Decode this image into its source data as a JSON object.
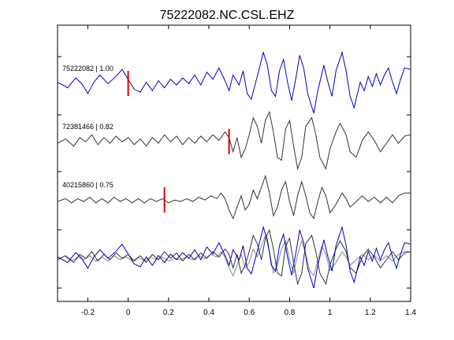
{
  "chart_data": {
    "type": "line",
    "title": "75222082.NC.CSL.EHZ",
    "xlim": [
      -0.35,
      1.4
    ],
    "x_ticks": [
      -0.2,
      0,
      0.2,
      0.4,
      0.6,
      0.8,
      1,
      1.2,
      1.4
    ],
    "x_tick_labels": [
      "-0.2",
      "0",
      "0.2",
      "0.4",
      "0.6",
      "0.8",
      "1",
      "1.2",
      "1.4"
    ],
    "grid": false,
    "colors": {
      "primary": "#0000cc",
      "secondary": "#333333",
      "overlay_gray": "#888888",
      "pick": "#dd0000"
    },
    "traces": [
      {
        "label": "75222082 | 1.00",
        "color": "#0000cc",
        "pick_time": 0.0,
        "points": [
          [
            -0.35,
            0.1
          ],
          [
            -0.3,
            -0.1
          ],
          [
            -0.26,
            0.25
          ],
          [
            -0.23,
            0.05
          ],
          [
            -0.2,
            -0.3
          ],
          [
            -0.17,
            0.1
          ],
          [
            -0.14,
            0.35
          ],
          [
            -0.1,
            0.05
          ],
          [
            -0.06,
            0.3
          ],
          [
            -0.03,
            0.55
          ],
          [
            0.0,
            0.2
          ],
          [
            0.03,
            -0.15
          ],
          [
            0.06,
            -0.25
          ],
          [
            0.09,
            0.1
          ],
          [
            0.12,
            -0.2
          ],
          [
            0.15,
            0.15
          ],
          [
            0.18,
            -0.1
          ],
          [
            0.21,
            0.2
          ],
          [
            0.24,
            0.0
          ],
          [
            0.27,
            0.25
          ],
          [
            0.3,
            0.05
          ],
          [
            0.33,
            0.35
          ],
          [
            0.36,
            0.0
          ],
          [
            0.39,
            0.45
          ],
          [
            0.42,
            0.2
          ],
          [
            0.45,
            0.6
          ],
          [
            0.48,
            0.15
          ],
          [
            0.5,
            -0.2
          ],
          [
            0.52,
            0.35
          ],
          [
            0.55,
            0.0
          ],
          [
            0.57,
            0.5
          ],
          [
            0.59,
            -0.3
          ],
          [
            0.61,
            -0.5
          ],
          [
            0.64,
            0.3
          ],
          [
            0.67,
            1.15
          ],
          [
            0.69,
            0.7
          ],
          [
            0.71,
            -0.2
          ],
          [
            0.73,
            -0.4
          ],
          [
            0.75,
            0.5
          ],
          [
            0.77,
            0.9
          ],
          [
            0.79,
            0.1
          ],
          [
            0.81,
            -0.55
          ],
          [
            0.83,
            0.2
          ],
          [
            0.85,
            1.05
          ],
          [
            0.87,
            0.6
          ],
          [
            0.89,
            -0.3
          ],
          [
            0.92,
            -1.0
          ],
          [
            0.94,
            -0.2
          ],
          [
            0.97,
            0.7
          ],
          [
            0.99,
            0.1
          ],
          [
            1.01,
            -0.4
          ],
          [
            1.03,
            0.5
          ],
          [
            1.06,
            1.15
          ],
          [
            1.08,
            0.5
          ],
          [
            1.1,
            -0.4
          ],
          [
            1.12,
            -0.8
          ],
          [
            1.15,
            0.1
          ],
          [
            1.17,
            -0.2
          ],
          [
            1.19,
            0.3
          ],
          [
            1.21,
            -0.05
          ],
          [
            1.23,
            0.4
          ],
          [
            1.25,
            0.0
          ],
          [
            1.27,
            0.35
          ],
          [
            1.29,
            0.6
          ],
          [
            1.31,
            0.1
          ],
          [
            1.33,
            -0.3
          ],
          [
            1.35,
            0.2
          ],
          [
            1.37,
            0.6
          ],
          [
            1.4,
            0.55
          ]
        ]
      },
      {
        "label": "72381466 | 0.82",
        "color": "#333333",
        "pick_time": 0.5,
        "points": [
          [
            -0.35,
            0.0
          ],
          [
            -0.31,
            0.15
          ],
          [
            -0.27,
            -0.1
          ],
          [
            -0.24,
            0.2
          ],
          [
            -0.21,
            0.05
          ],
          [
            -0.18,
            0.3
          ],
          [
            -0.15,
            -0.05
          ],
          [
            -0.12,
            0.2
          ],
          [
            -0.09,
            0.0
          ],
          [
            -0.06,
            0.25
          ],
          [
            -0.03,
            0.05
          ],
          [
            0.0,
            0.2
          ],
          [
            0.03,
            -0.05
          ],
          [
            0.06,
            0.15
          ],
          [
            0.09,
            -0.1
          ],
          [
            0.12,
            0.2
          ],
          [
            0.15,
            0.0
          ],
          [
            0.18,
            0.3
          ],
          [
            0.21,
            0.05
          ],
          [
            0.24,
            0.25
          ],
          [
            0.27,
            -0.05
          ],
          [
            0.3,
            0.2
          ],
          [
            0.33,
            0.0
          ],
          [
            0.36,
            0.25
          ],
          [
            0.39,
            0.05
          ],
          [
            0.42,
            0.3
          ],
          [
            0.45,
            0.1
          ],
          [
            0.48,
            0.4
          ],
          [
            0.5,
            0.2
          ],
          [
            0.52,
            -0.3
          ],
          [
            0.54,
            0.2
          ],
          [
            0.56,
            -0.5
          ],
          [
            0.58,
            -0.2
          ],
          [
            0.6,
            0.3
          ],
          [
            0.62,
            0.9
          ],
          [
            0.64,
            0.6
          ],
          [
            0.66,
            0.0
          ],
          [
            0.68,
            0.8
          ],
          [
            0.7,
            1.1
          ],
          [
            0.72,
            0.4
          ],
          [
            0.74,
            -0.5
          ],
          [
            0.76,
            -0.6
          ],
          [
            0.78,
            0.5
          ],
          [
            0.8,
            0.8
          ],
          [
            0.82,
            -0.1
          ],
          [
            0.84,
            -0.9
          ],
          [
            0.86,
            -0.5
          ],
          [
            0.88,
            0.6
          ],
          [
            0.91,
            0.9
          ],
          [
            0.93,
            0.3
          ],
          [
            0.95,
            -0.5
          ],
          [
            0.98,
            -0.9
          ],
          [
            1.0,
            -0.2
          ],
          [
            1.03,
            0.4
          ],
          [
            1.05,
            0.7
          ],
          [
            1.08,
            0.3
          ],
          [
            1.1,
            -0.3
          ],
          [
            1.13,
            -0.5
          ],
          [
            1.16,
            0.1
          ],
          [
            1.19,
            0.4
          ],
          [
            1.22,
            0.1
          ],
          [
            1.25,
            -0.3
          ],
          [
            1.28,
            0.0
          ],
          [
            1.31,
            0.3
          ],
          [
            1.34,
            0.0
          ],
          [
            1.37,
            0.25
          ],
          [
            1.4,
            0.3
          ]
        ]
      },
      {
        "label": "40215860 | 0.75",
        "color": "#333333",
        "pick_time": 0.18,
        "points": [
          [
            -0.35,
            0.0
          ],
          [
            -0.31,
            0.1
          ],
          [
            -0.28,
            -0.05
          ],
          [
            -0.25,
            0.1
          ],
          [
            -0.22,
            0.0
          ],
          [
            -0.19,
            0.15
          ],
          [
            -0.16,
            -0.05
          ],
          [
            -0.13,
            0.1
          ],
          [
            -0.1,
            -0.05
          ],
          [
            -0.07,
            0.15
          ],
          [
            -0.04,
            0.0
          ],
          [
            -0.01,
            0.1
          ],
          [
            0.02,
            -0.05
          ],
          [
            0.05,
            0.1
          ],
          [
            0.08,
            -0.05
          ],
          [
            0.11,
            0.1
          ],
          [
            0.14,
            0.0
          ],
          [
            0.17,
            0.1
          ],
          [
            0.2,
            -0.05
          ],
          [
            0.23,
            0.05
          ],
          [
            0.26,
            0.0
          ],
          [
            0.29,
            0.1
          ],
          [
            0.32,
            0.0
          ],
          [
            0.35,
            0.15
          ],
          [
            0.38,
            0.05
          ],
          [
            0.41,
            0.2
          ],
          [
            0.44,
            0.1
          ],
          [
            0.46,
            0.3
          ],
          [
            0.48,
            0.1
          ],
          [
            0.5,
            -0.3
          ],
          [
            0.52,
            -0.6
          ],
          [
            0.54,
            -0.2
          ],
          [
            0.56,
            0.2
          ],
          [
            0.58,
            -0.3
          ],
          [
            0.6,
            -0.1
          ],
          [
            0.62,
            0.4
          ],
          [
            0.64,
            0.1
          ],
          [
            0.66,
            0.5
          ],
          [
            0.68,
            0.9
          ],
          [
            0.7,
            0.3
          ],
          [
            0.72,
            -0.5
          ],
          [
            0.74,
            -0.2
          ],
          [
            0.76,
            0.4
          ],
          [
            0.78,
            0.7
          ],
          [
            0.8,
            0.0
          ],
          [
            0.82,
            -0.5
          ],
          [
            0.84,
            0.2
          ],
          [
            0.86,
            0.7
          ],
          [
            0.88,
            0.2
          ],
          [
            0.9,
            -0.4
          ],
          [
            0.92,
            -0.6
          ],
          [
            0.94,
            0.0
          ],
          [
            0.96,
            0.5
          ],
          [
            0.98,
            0.2
          ],
          [
            1.0,
            -0.4
          ],
          [
            1.03,
            -0.1
          ],
          [
            1.06,
            0.3
          ],
          [
            1.08,
            0.1
          ],
          [
            1.1,
            -0.2
          ],
          [
            1.13,
            0.0
          ],
          [
            1.16,
            0.2
          ],
          [
            1.19,
            0.0
          ],
          [
            1.22,
            0.15
          ],
          [
            1.25,
            -0.05
          ],
          [
            1.28,
            0.15
          ],
          [
            1.31,
            -0.05
          ],
          [
            1.34,
            0.2
          ],
          [
            1.37,
            0.3
          ],
          [
            1.4,
            0.3
          ]
        ]
      }
    ]
  }
}
